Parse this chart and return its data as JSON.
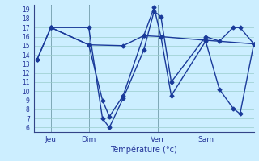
{
  "background_color": "#cceeff",
  "line_color": "#1a3a9a",
  "grid_color": "#99cccc",
  "xlabel": "Température (°c)",
  "xlim": [
    0,
    32
  ],
  "ylim": [
    5.5,
    19.5
  ],
  "yticks": [
    6,
    7,
    8,
    9,
    10,
    11,
    12,
    13,
    14,
    15,
    16,
    17,
    18,
    19
  ],
  "day_positions": [
    2.5,
    8,
    18,
    25
  ],
  "day_labels": [
    "Jeu",
    "Dim",
    "Ven",
    "Sam"
  ],
  "series1_x": [
    0.5,
    2.5,
    8,
    10,
    11,
    13,
    16,
    17.5,
    18.5,
    20,
    25,
    27,
    29,
    30,
    32
  ],
  "series1_y": [
    13.5,
    17,
    17,
    7,
    6,
    9.2,
    14.5,
    18.8,
    18.2,
    11,
    16,
    15.5,
    17,
    17,
    15.2
  ],
  "series2_x": [
    0.5,
    2.5,
    8,
    10,
    11,
    13,
    16,
    17.5,
    18.5,
    20,
    25,
    27,
    29,
    30,
    32
  ],
  "series2_y": [
    13.5,
    17,
    15.1,
    9,
    7.2,
    9.5,
    16.1,
    19.2,
    16.0,
    9.5,
    15.5,
    10.2,
    8.1,
    7.5,
    15.2
  ],
  "series3_x": [
    2.5,
    8,
    13,
    16,
    18.5,
    25,
    32
  ],
  "series3_y": [
    17,
    15.1,
    15.0,
    16.1,
    16.0,
    15.6,
    15.2
  ],
  "marker": "D",
  "markersize": 2.5,
  "linewidth": 1.0
}
